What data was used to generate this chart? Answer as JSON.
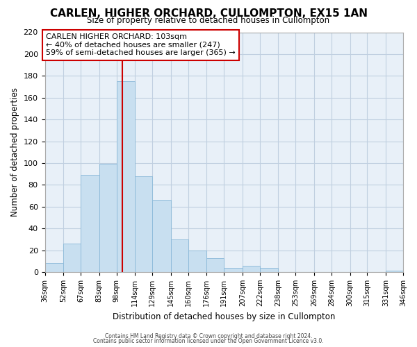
{
  "title": "CARLEN, HIGHER ORCHARD, CULLOMPTON, EX15 1AN",
  "subtitle": "Size of property relative to detached houses in Cullompton",
  "xlabel": "Distribution of detached houses by size in Cullompton",
  "ylabel": "Number of detached properties",
  "bin_edges": [
    36,
    52,
    67,
    83,
    98,
    114,
    129,
    145,
    160,
    176,
    191,
    207,
    222,
    238,
    253,
    269,
    284,
    300,
    315,
    331,
    346
  ],
  "bin_labels": [
    "36sqm",
    "52sqm",
    "67sqm",
    "83sqm",
    "98sqm",
    "114sqm",
    "129sqm",
    "145sqm",
    "160sqm",
    "176sqm",
    "191sqm",
    "207sqm",
    "222sqm",
    "238sqm",
    "253sqm",
    "269sqm",
    "284sqm",
    "300sqm",
    "315sqm",
    "331sqm",
    "346sqm"
  ],
  "counts": [
    8,
    26,
    89,
    99,
    175,
    88,
    66,
    30,
    20,
    13,
    4,
    6,
    4,
    0,
    0,
    0,
    0,
    0,
    0,
    1
  ],
  "bar_color": "#c8dff0",
  "bar_edgecolor": "#8ab8d8",
  "vline_x": 103,
  "vline_color": "#cc0000",
  "ylim": [
    0,
    220
  ],
  "yticks": [
    0,
    20,
    40,
    60,
    80,
    100,
    120,
    140,
    160,
    180,
    200,
    220
  ],
  "annotation_title": "CARLEN HIGHER ORCHARD: 103sqm",
  "annotation_line1": "← 40% of detached houses are smaller (247)",
  "annotation_line2": "59% of semi-detached houses are larger (365) →",
  "footer1": "Contains HM Land Registry data © Crown copyright and database right 2024.",
  "footer2": "Contains public sector information licensed under the Open Government Licence v3.0.",
  "plot_bg_color": "#e8f0f8",
  "grid_color": "#c0cfe0"
}
